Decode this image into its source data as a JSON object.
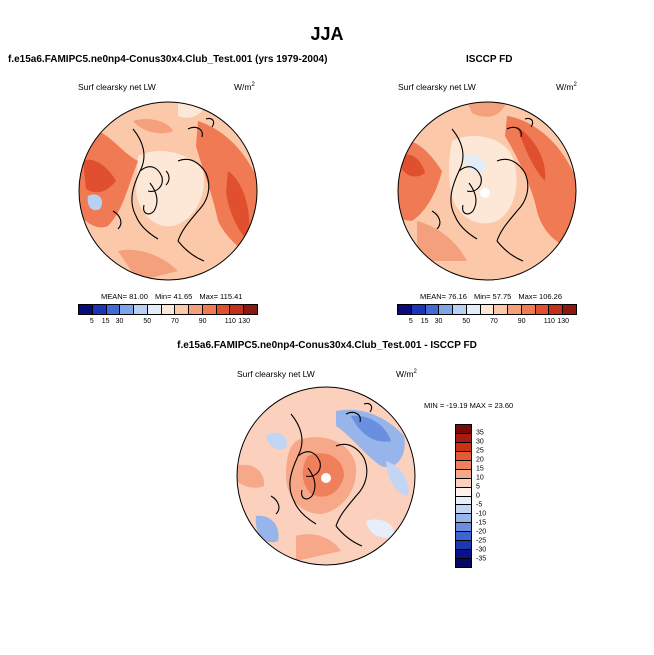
{
  "title": "JJA",
  "panels": [
    {
      "title": "f.e15a6.FAMIPC5.ne0np4-Conus30x4.Club_Test.001 (yrs 1979-2004)",
      "variable": "Surf clearsky net LW",
      "units": "W/m",
      "units_sup": "2",
      "stats": {
        "mean": "MEAN=  81.00",
        "min": "Min=  41.65",
        "max": "Max=  115.41"
      },
      "colorbar_ticks": [
        "5",
        "15",
        "30",
        "50",
        "70",
        "90",
        "110",
        "130"
      ]
    },
    {
      "title": "ISCCP FD",
      "variable": "Surf clearsky net LW",
      "units": "W/m",
      "units_sup": "2",
      "stats": {
        "mean": "MEAN=  76.16",
        "min": "Min=  57.75",
        "max": "Max=  106.26"
      },
      "colorbar_ticks": [
        "5",
        "15",
        "30",
        "50",
        "70",
        "90",
        "110",
        "130"
      ]
    },
    {
      "title": "f.e15a6.FAMIPC5.ne0np4-Conus30x4.Club_Test.001 - ISCCP FD",
      "variable": "Surf clearsky net LW",
      "units": "W/m",
      "units_sup": "2",
      "stats": {
        "minmax": "MIN = -19.19  MAX =  23.60"
      },
      "colorbar_ticks": [
        "35",
        "30",
        "25",
        "20",
        "15",
        "10",
        "5",
        "0",
        "-5",
        "-10",
        "-15",
        "-20",
        "-25",
        "-30",
        "-35"
      ]
    }
  ],
  "colors": {
    "abs_scale": [
      "#0a0a78",
      "#1c34b8",
      "#3f6bd6",
      "#7ea6e6",
      "#b8d0f2",
      "#e4ecf8",
      "#fde7d6",
      "#fbc8aa",
      "#f5a07c",
      "#ef7a54",
      "#e0502f",
      "#c0301a",
      "#8e1810"
    ],
    "diff_scale": [
      "#7a0a0a",
      "#a81a12",
      "#cc3019",
      "#e55a33",
      "#f0805c",
      "#f6a889",
      "#fbd0bd",
      "#fff3ec",
      "#e6eefb",
      "#c2d5f3",
      "#97b5ea",
      "#6b8fe0",
      "#3f63cf",
      "#1d37b0",
      "#08128a",
      "#050a60"
    ]
  }
}
